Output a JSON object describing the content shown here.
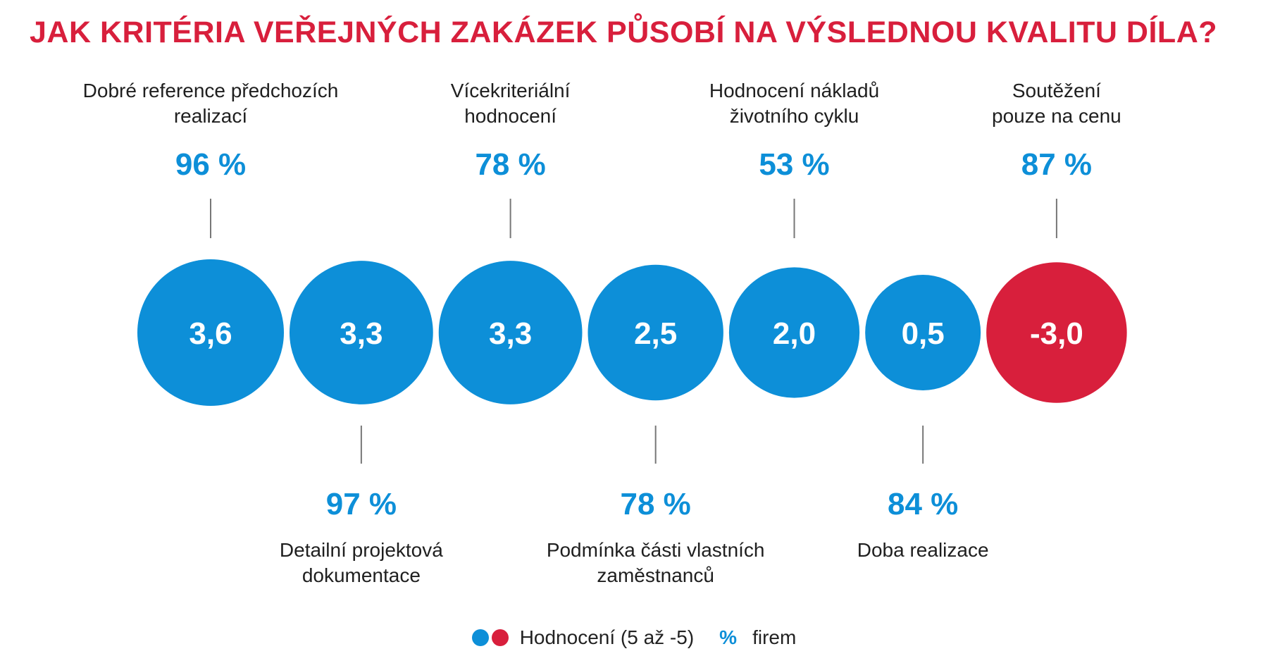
{
  "title": "JAK KRITÉRIA VEŘEJNÝCH ZAKÁZEK PŮSOBÍ NA VÝSLEDNOU KVALITU DÍLA?",
  "chart_data": {
    "type": "bubble",
    "title": "JAK KRITÉRIA VEŘEJNÝCH ZAKÁZEK PŮSOBÍ NA VÝSLEDNOU KVALITU DÍLA?",
    "scale_range": [
      5,
      -5
    ],
    "colors": {
      "positive": "#0d8fd8",
      "negative": "#d81f3c"
    },
    "items": [
      {
        "label_lines": [
          "Dobré reference předchozích",
          "realizací"
        ],
        "rating": 3.6,
        "rating_text": "3,6",
        "percent": 96,
        "percent_text": "96 %",
        "label_position": "top"
      },
      {
        "label_lines": [
          "Detailní projektová",
          "dokumentace"
        ],
        "rating": 3.3,
        "rating_text": "3,3",
        "percent": 97,
        "percent_text": "97 %",
        "label_position": "bottom"
      },
      {
        "label_lines": [
          "Vícekriteriální",
          "hodnocení"
        ],
        "rating": 3.3,
        "rating_text": "3,3",
        "percent": 78,
        "percent_text": "78 %",
        "label_position": "top"
      },
      {
        "label_lines": [
          "Podmínka části vlastních",
          "zaměstnanců"
        ],
        "rating": 2.5,
        "rating_text": "2,5",
        "percent": 78,
        "percent_text": "78 %",
        "label_position": "bottom"
      },
      {
        "label_lines": [
          "Hodnocení nákladů",
          "životního cyklu"
        ],
        "rating": 2.0,
        "rating_text": "2,0",
        "percent": 53,
        "percent_text": "53 %",
        "label_position": "top"
      },
      {
        "label_lines": [
          "Doba realizace"
        ],
        "rating": 0.5,
        "rating_text": "0,5",
        "percent": 84,
        "percent_text": "84 %",
        "label_position": "bottom"
      },
      {
        "label_lines": [
          "Soutěžení",
          "pouze na cenu"
        ],
        "rating": -3.0,
        "rating_text": "-3,0",
        "percent": 87,
        "percent_text": "87 %",
        "label_position": "top"
      }
    ],
    "legend": {
      "rating_label": "Hodnocení (5 až -5)",
      "percent_symbol": "%",
      "percent_label": "firem"
    }
  }
}
